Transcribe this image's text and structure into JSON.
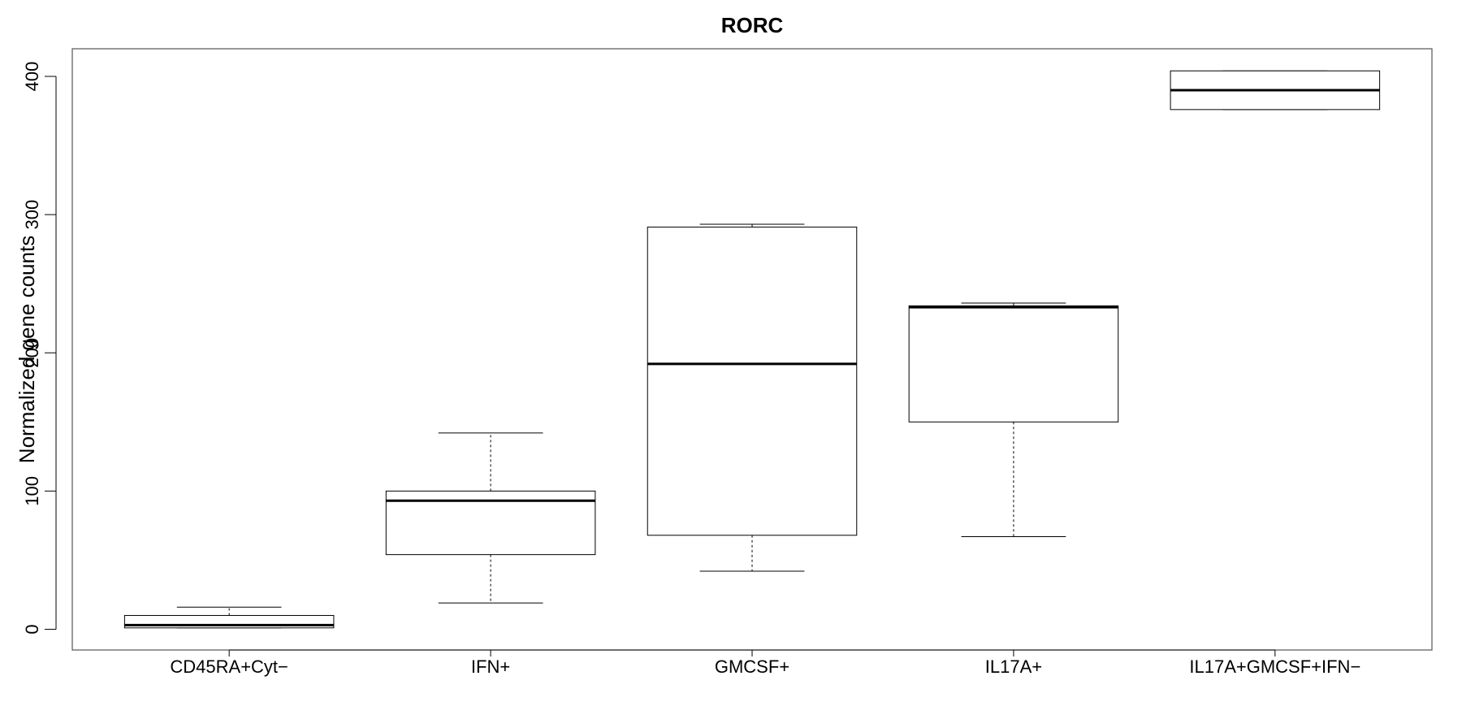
{
  "chart_data": {
    "type": "box",
    "title": "RORC",
    "xlabel": "",
    "ylabel": "Normalized gene counts",
    "ylim": [
      -15,
      420
    ],
    "yticks": [
      0,
      100,
      200,
      300,
      400
    ],
    "ytick_labels": [
      "0",
      "100",
      "200",
      "300",
      "400"
    ],
    "grid": false,
    "categories": [
      "CD45RA+Cyt−",
      "IFN+",
      "GMCSF+",
      "IL17A+",
      "IL17A+GMCSF+IFN−"
    ],
    "boxes": [
      {
        "whisker_low": 1,
        "q1": 1,
        "median": 3,
        "q3": 10,
        "whisker_high": 16
      },
      {
        "whisker_low": 19,
        "q1": 54,
        "median": 93,
        "q3": 100,
        "whisker_high": 142
      },
      {
        "whisker_low": 42,
        "q1": 68,
        "median": 192,
        "q3": 291,
        "whisker_high": 293
      },
      {
        "whisker_low": 67,
        "q1": 150,
        "median": 233,
        "q3": 234,
        "whisker_high": 236
      },
      {
        "whisker_low": 376,
        "q1": 376,
        "median": 390,
        "q3": 404,
        "whisker_high": 404
      }
    ],
    "box_fill": "#ffffff",
    "line_color": "#000000"
  }
}
